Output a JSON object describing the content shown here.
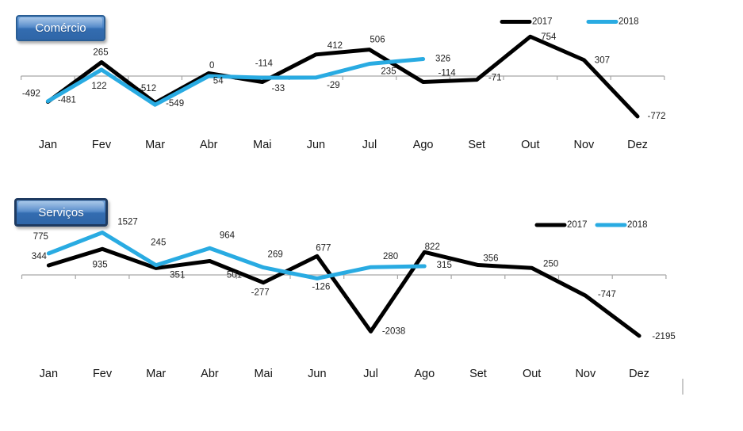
{
  "chart_data": [
    {
      "type": "line",
      "title": "Comércio",
      "categories": [
        "Jan",
        "Fev",
        "Mar",
        "Abr",
        "Mai",
        "Jun",
        "Jul",
        "Ago",
        "Set",
        "Out",
        "Nov",
        "Dez"
      ],
      "legend": {
        "position": "top-right",
        "entries": [
          "2017",
          "2018"
        ]
      },
      "axis": {
        "zero_line": true,
        "gridlines": false,
        "color": "#A6A6A6",
        "ylim": [
          -800,
          800
        ]
      },
      "series": [
        {
          "name": "2017",
          "color": "#000000",
          "values": [
            -492,
            265,
            -512,
            54,
            -114,
            412,
            506,
            -114,
            -71,
            754,
            307,
            -772
          ],
          "label_offsets": [
            [
              -21,
              -10
            ],
            [
              -1,
              -12
            ],
            [
              -10,
              -18
            ],
            [
              12,
              10
            ],
            [
              2,
              -23
            ],
            [
              24,
              -11
            ],
            [
              10,
              -12
            ],
            [
              30,
              -11
            ],
            [
              23,
              -2
            ],
            [
              23,
              1
            ],
            [
              23,
              1
            ],
            [
              24,
              0
            ]
          ]
        },
        {
          "name": "2018",
          "color": "#29ABE2",
          "values": [
            -481,
            122,
            -549,
            0,
            -33,
            -29,
            235,
            326
          ],
          "label_offsets": [
            [
              24,
              -1
            ],
            [
              -3,
              21
            ],
            [
              25,
              -1
            ],
            [
              4,
              -13
            ],
            [
              20,
              14
            ],
            [
              22,
              10
            ],
            [
              24,
              10
            ],
            [
              25,
              0
            ]
          ]
        }
      ]
    },
    {
      "type": "line",
      "title": "Serviços",
      "categories": [
        "Jan",
        "Fev",
        "Mar",
        "Abr",
        "Mai",
        "Jun",
        "Jul",
        "Ago",
        "Set",
        "Out",
        "Nov",
        "Dez"
      ],
      "legend": {
        "position": "top-right",
        "entries": [
          "2017",
          "2018"
        ]
      },
      "axis": {
        "zero_line": true,
        "gridlines": false,
        "color": "#A6A6A6",
        "ylim": [
          -2300,
          1600
        ]
      },
      "series": [
        {
          "name": "2017",
          "color": "#000000",
          "values": [
            344,
            935,
            245,
            501,
            -277,
            677,
            -2038,
            822,
            356,
            250,
            -747,
            -2195
          ],
          "label_offsets": [
            [
              -12,
              -11
            ],
            [
              -3,
              20
            ],
            [
              3,
              -32
            ],
            [
              31,
              18
            ],
            [
              -4,
              13
            ],
            [
              8,
              -10
            ],
            [
              29,
              0
            ],
            [
              10,
              -6
            ],
            [
              16,
              -8
            ],
            [
              24,
              -5
            ],
            [
              27,
              -1
            ],
            [
              31,
              1
            ]
          ]
        },
        {
          "name": "2018",
          "color": "#29ABE2",
          "values": [
            775,
            1527,
            351,
            964,
            269,
            -126,
            280,
            315
          ],
          "label_offsets": [
            [
              -10,
              -21
            ],
            [
              32,
              -13
            ],
            [
              27,
              13
            ],
            [
              22,
              -16
            ],
            [
              15,
              -16
            ],
            [
              5,
              11
            ],
            [
              25,
              -13
            ],
            [
              25,
              -1
            ]
          ]
        }
      ]
    }
  ],
  "ui": {
    "button_text_color": "#FFFFFF",
    "button_fill": "#3D76B8",
    "button_border_comercio": "#2A5E95",
    "button_border_servicos": "#1E3A60",
    "data_label_color": "#1F1F1F",
    "month_label_color": "#141414",
    "legend_text_color": "#1F1F1F",
    "edge_mark_color": "#C9C9C9"
  }
}
